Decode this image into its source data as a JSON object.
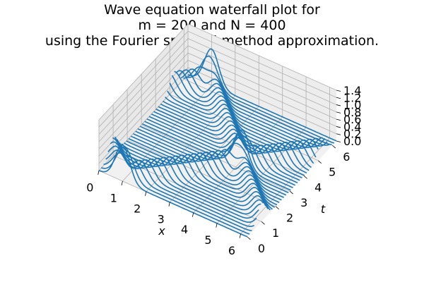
{
  "title": {
    "line1": "Wave equation waterfall plot for",
    "line2": "m = 200 and N = 400",
    "line3": "using the Fourier spectral method approximation."
  },
  "colors": {
    "series": "#1f77b4",
    "pane_floor": "#f1f1f1",
    "pane_back_left": "#e8e8e8",
    "pane_back_right": "#ededed"
  },
  "chart_data": {
    "type": "line",
    "projection": "3d-waterfall",
    "xlabel": "x",
    "ylabel": "t",
    "zlabel": "",
    "xlim": [
      0,
      6.283
    ],
    "ylim": [
      0,
      6.283
    ],
    "zlim": [
      0,
      1.4
    ],
    "x_ticks": [
      "0",
      "1",
      "2",
      "3",
      "4",
      "5",
      "6"
    ],
    "t_ticks": [
      "0",
      "1",
      "2",
      "3",
      "4",
      "5",
      "6"
    ],
    "z_ticks": [
      "0.0",
      "0.2",
      "0.4",
      "0.6",
      "0.8",
      "1.0",
      "1.2",
      "1.4"
    ],
    "grid": true,
    "t_count": 40,
    "pulse": {
      "description_visible": false,
      "initial_center_x": 1.0,
      "speed": 1.0,
      "peak": 1.0,
      "width": 0.3
    },
    "series_color": "#1f77b4"
  }
}
